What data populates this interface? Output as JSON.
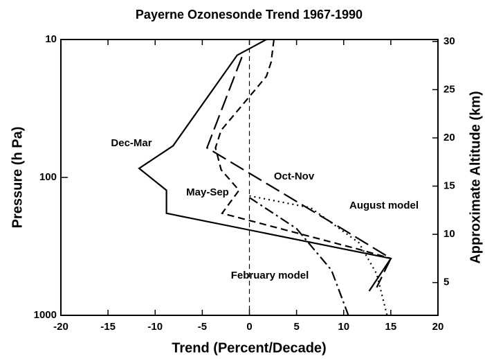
{
  "chart_data": {
    "type": "line",
    "title": "Payerne Ozonesonde Trend 1967-1990",
    "x_label": "Trend (Percent/Decade)",
    "y_label": "Pressure (h Pa)",
    "y2_label": "Approximate Altitude (km)",
    "xlim": [
      -20,
      20
    ],
    "xticks": [
      -20,
      -15,
      -10,
      -5,
      0,
      5,
      10,
      15,
      20
    ],
    "ylim": [
      1000,
      10
    ],
    "yticks": [
      10,
      100,
      1000
    ],
    "y_log": true,
    "y2lim": [
      1.6,
      30.2
    ],
    "y2ticks": [
      5,
      10,
      15,
      20,
      25,
      30
    ],
    "reference_line_x": 0,
    "series": [
      {
        "name": "Dec-Mar",
        "color": "#000000",
        "dash": "none",
        "x": [
          1.8,
          -1.3,
          -8.1,
          -11.7,
          -8.8,
          -8.8,
          15,
          12.7
        ],
        "y": [
          10,
          13,
          59,
          86,
          124,
          182,
          387,
          667
        ]
      },
      {
        "name": "Oct-Nov",
        "color": "#000000",
        "dash": "22 8",
        "x": [
          -0.8,
          -4.5,
          9.8,
          12,
          15,
          13.5
        ],
        "y": [
          13.4,
          61,
          235,
          290,
          387,
          628
        ]
      },
      {
        "name": "May-Sep",
        "color": "#000000",
        "dash": "10 6",
        "x": [
          2.6,
          2.3,
          1.8,
          -3,
          -3.6,
          -3,
          -1.1,
          -2.9,
          11.6,
          15
        ],
        "y": [
          10,
          14.6,
          18.5,
          45.5,
          61,
          88,
          124,
          182,
          332,
          387
        ]
      },
      {
        "name": "August model",
        "color": "#000000",
        "dash": "2 5",
        "x": [
          0,
          6.5,
          11.6,
          13.5,
          14.6
        ],
        "y": [
          136,
          166,
          297,
          500,
          1000
        ]
      },
      {
        "name": "February model",
        "color": "#000000",
        "dash": "14 5 3 5",
        "x": [
          0,
          5,
          8.7,
          10.5
        ],
        "y": [
          140,
          235,
          470,
          1000
        ]
      }
    ]
  }
}
